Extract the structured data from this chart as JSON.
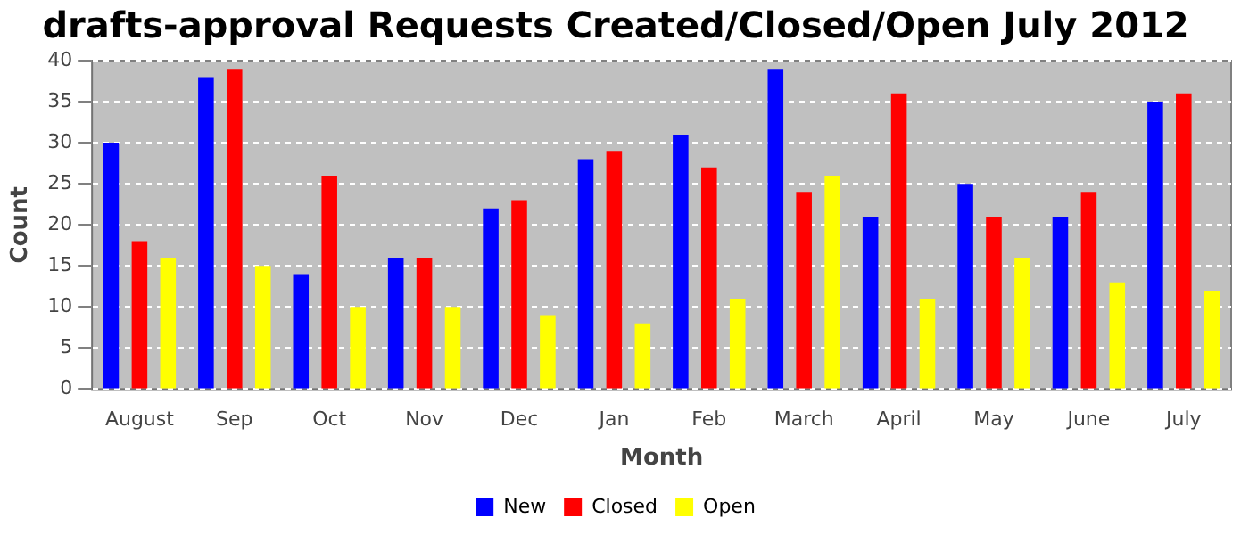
{
  "chart_data": {
    "type": "bar",
    "title": "drafts-approval Requests Created/Closed/Open July 2012",
    "xlabel": "Month",
    "ylabel": "Count",
    "categories": [
      "August",
      "Sep",
      "Oct",
      "Nov",
      "Dec",
      "Jan",
      "Feb",
      "March",
      "April",
      "May",
      "June",
      "July"
    ],
    "series": [
      {
        "name": "New",
        "color": "#0000ff",
        "values": [
          30,
          38,
          14,
          16,
          22,
          28,
          31,
          39,
          21,
          25,
          21,
          35
        ]
      },
      {
        "name": "Closed",
        "color": "#ff0000",
        "values": [
          18,
          39,
          26,
          16,
          23,
          29,
          27,
          24,
          36,
          21,
          24,
          36
        ]
      },
      {
        "name": "Open",
        "color": "#ffff00",
        "values": [
          16,
          15,
          10,
          10,
          9,
          8,
          11,
          26,
          11,
          16,
          13,
          12
        ]
      }
    ],
    "ylim": [
      0,
      40
    ],
    "yticks": [
      0,
      5,
      10,
      15,
      20,
      25,
      30,
      35,
      40
    ],
    "grid": "y",
    "legend": "bottom"
  }
}
